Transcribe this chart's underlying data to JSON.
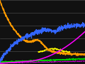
{
  "background_color": "#111111",
  "grid_color": "#666666",
  "figsize": [
    1.2,
    0.9
  ],
  "dpi": 100,
  "xlim": [
    0,
    100
  ],
  "ylim": [
    0,
    100
  ],
  "lines": {
    "blue": {
      "color": "#3366ff"
    },
    "magenta": {
      "color": "#ff00ff"
    },
    "orange": {
      "color": "#ff9900"
    },
    "green": {
      "color": "#00cc00"
    },
    "yellow": {
      "color": "#ffff00"
    },
    "purple": {
      "color": "#cc00cc"
    }
  },
  "n_grid": 5
}
